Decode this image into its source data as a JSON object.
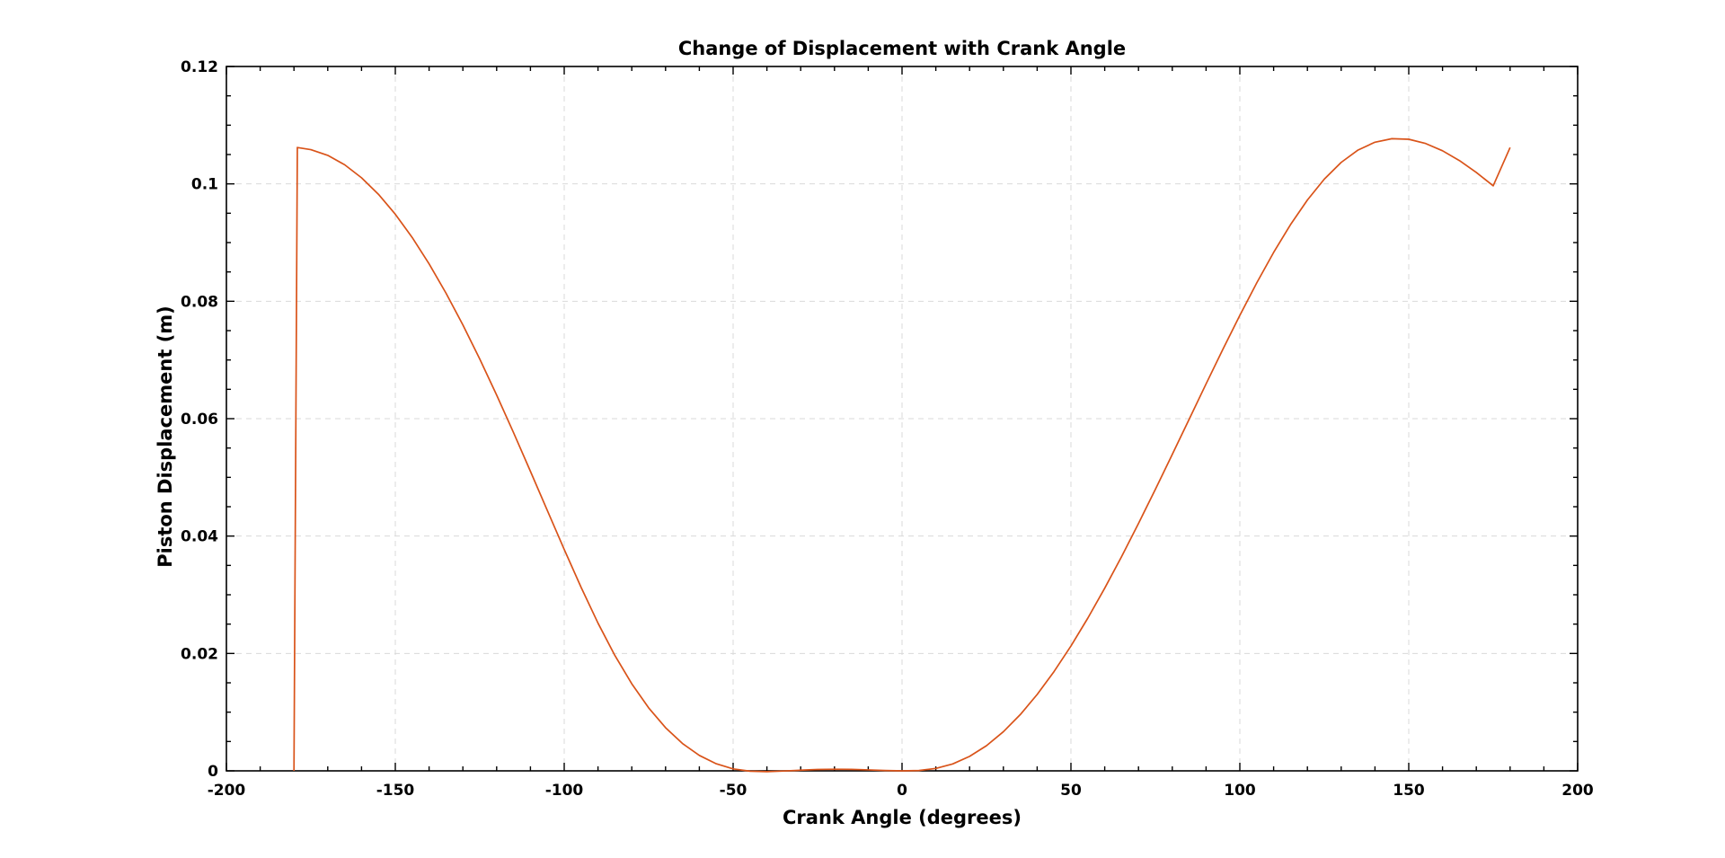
{
  "chart_data": {
    "type": "line",
    "title": "Change of Displacement with Crank Angle",
    "xlabel": "Crank Angle (degrees)",
    "ylabel": "Piston Displacement (m)",
    "xlim": [
      -200,
      200
    ],
    "ylim": [
      0,
      0.12
    ],
    "x_ticks": [
      -200,
      -150,
      -100,
      -50,
      0,
      50,
      100,
      150,
      200
    ],
    "x_tick_labels": [
      "-200",
      "-150",
      "-100",
      "-50",
      "0",
      "50",
      "100",
      "150",
      "200"
    ],
    "y_ticks": [
      0,
      0.02,
      0.04,
      0.06,
      0.08,
      0.1,
      0.12
    ],
    "y_tick_labels": [
      "0",
      "0.02",
      "0.04",
      "0.06",
      "0.08",
      "0.1",
      "0.12"
    ],
    "grid": true,
    "line_color": "#d95319",
    "series": [
      {
        "x": [
          -180,
          -179,
          -175,
          -170,
          -165,
          -160,
          -155,
          -150,
          -145,
          -140,
          -135,
          -130,
          -125,
          -120,
          -115,
          -110,
          -105,
          -100,
          -95,
          -90,
          -85,
          -80,
          -75,
          -70,
          -65,
          -60,
          -55,
          -50,
          -45,
          -40,
          -35,
          -30,
          -25,
          -20,
          -15,
          -10,
          -5,
          0,
          5,
          10,
          15,
          20,
          25,
          30,
          35,
          40,
          45,
          50,
          55,
          60,
          65,
          70,
          75,
          80,
          85,
          90,
          95,
          100,
          105,
          110,
          115,
          120,
          125,
          130,
          135,
          140,
          145,
          150,
          155,
          160,
          165,
          170,
          175,
          180
        ],
        "values": [
          0,
          0.1062,
          0.10583,
          0.10486,
          0.10326,
          0.10104,
          0.09823,
          0.09483,
          0.09087,
          0.08637,
          0.08139,
          0.07597,
          0.07016,
          0.06402,
          0.05762,
          0.05103,
          0.04436,
          0.03772,
          0.03126,
          0.02517,
          0.01965,
          0.01483,
          0.01073,
          0.00735,
          0.00466,
          0.00263,
          0.00121,
          0.00034,
          -6e-05,
          -0.00014,
          -3e-05,
          0.00011,
          0.00023,
          0.00028,
          0.00025,
          0.00016,
          6e-05,
          0,
          6e-05,
          0.00041,
          0.00118,
          0.00247,
          0.00429,
          0.00667,
          0.00958,
          0.01301,
          0.01692,
          0.02127,
          0.02602,
          0.03112,
          0.03651,
          0.04215,
          0.04797,
          0.05391,
          0.05991,
          0.06592,
          0.07184,
          0.07761,
          0.08313,
          0.08832,
          0.09306,
          0.09725,
          0.10081,
          0.10366,
          0.10577,
          0.1071,
          0.1077,
          0.1076,
          0.10688,
          0.10564,
          0.10397,
          0.10195,
          0.09967,
          0.1062
        ]
      }
    ]
  }
}
